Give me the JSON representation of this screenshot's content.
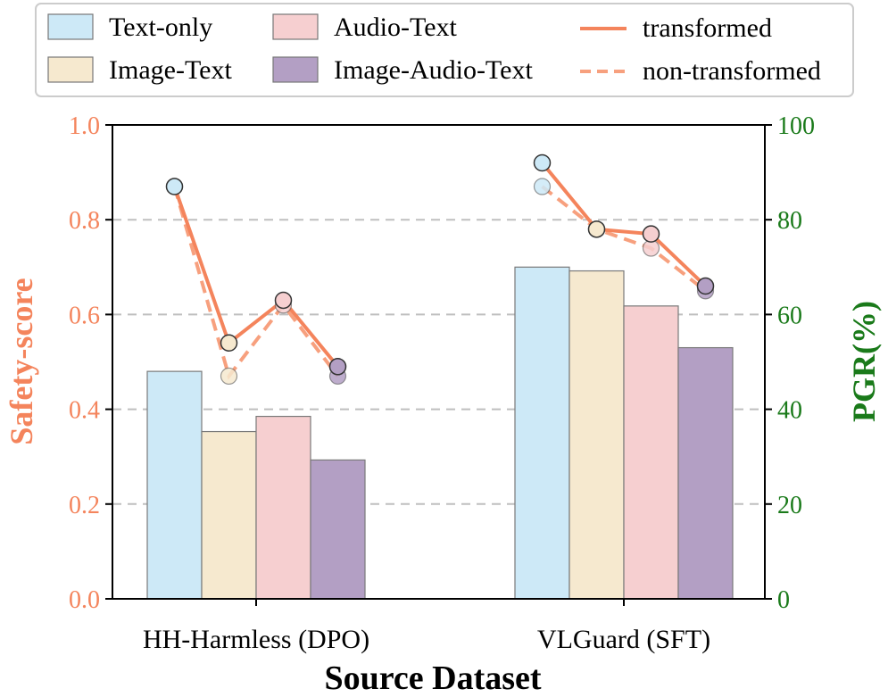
{
  "chart_data": {
    "type": "bar",
    "categories": [
      "HH-Harmless (DPO)",
      "VLGuard (SFT)"
    ],
    "xlabel": "Source Dataset",
    "ylabel_left": "Safety-score",
    "ylabel_right": "PGR(%)",
    "ylim_left": [
      0.0,
      1.0
    ],
    "ylim_right": [
      0,
      100
    ],
    "yticks_left": [
      "0.0",
      "0.2",
      "0.4",
      "0.6",
      "0.8",
      "1.0"
    ],
    "yticks_right": [
      "0",
      "20",
      "40",
      "60",
      "80",
      "100"
    ],
    "grid": true,
    "legend_position": "top",
    "series": [
      {
        "name": "Text-only",
        "color": "#cde9f7",
        "bar_values": [
          0.48,
          0.7
        ],
        "transformed": [
          0.87,
          0.92
        ],
        "non_transformed": [
          0.87,
          0.87
        ]
      },
      {
        "name": "Image-Text",
        "color": "#f6e9cf",
        "bar_values": [
          0.353,
          0.692
        ],
        "transformed": [
          0.54,
          0.78
        ],
        "non_transformed": [
          0.47,
          0.78
        ]
      },
      {
        "name": "Audio-Text",
        "color": "#f6cfd0",
        "bar_values": [
          0.385,
          0.618
        ],
        "transformed": [
          0.63,
          0.77
        ],
        "non_transformed": [
          0.62,
          0.74
        ]
      },
      {
        "name": "Image-Audio-Text",
        "color": "#b39fc4",
        "bar_values": [
          0.293,
          0.53
        ],
        "transformed": [
          0.49,
          0.66
        ],
        "non_transformed": [
          0.47,
          0.65
        ]
      }
    ],
    "line_legend": [
      {
        "name": "transformed",
        "style": "solid"
      },
      {
        "name": "non-transformed",
        "style": "dashed"
      }
    ],
    "colors": {
      "left_axis": "#f4845c",
      "right_axis": "#1a7a1a",
      "line": "#f4845c"
    }
  }
}
